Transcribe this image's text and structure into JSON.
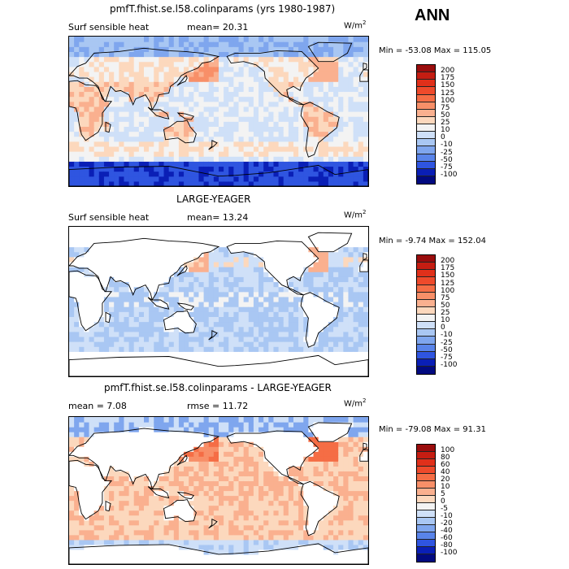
{
  "season": "ANN",
  "panels": [
    {
      "title": "pmfT.fhist.se.l58.colinparams (yrs 1980-1987)",
      "left_label": "Surf sensible heat",
      "middle_label": "mean=  20.31",
      "units": "W/m",
      "units_sup": "2",
      "minmax": "Min = -53.08 Max = 115.05",
      "levels": [
        "200",
        "175",
        "150",
        "125",
        "100",
        "75",
        "50",
        "25",
        "10",
        "0",
        "-10",
        "-25",
        "-50",
        "-75",
        "-100"
      ],
      "colors": [
        "#9a0d0d",
        "#c51d12",
        "#e0301a",
        "#ee4a2b",
        "#f56d45",
        "#f88f68",
        "#fab08f",
        "#fcd8bd",
        "#f3f3f3",
        "#cfe0f8",
        "#a9c7f3",
        "#7fa6ee",
        "#5984ea",
        "#2f55e0",
        "#0a1fb6",
        "#020a80"
      ],
      "map_style": "model"
    },
    {
      "title": "LARGE-YEAGER",
      "left_label": "Surf sensible heat",
      "middle_label": "mean=  13.24",
      "units": "W/m",
      "units_sup": "2",
      "minmax": "Min =  -9.74 Max = 152.04",
      "levels": [
        "200",
        "175",
        "150",
        "125",
        "100",
        "75",
        "50",
        "25",
        "10",
        "0",
        "-10",
        "-25",
        "-50",
        "-75",
        "-100"
      ],
      "colors": [
        "#9a0d0d",
        "#c51d12",
        "#e0301a",
        "#ee4a2b",
        "#f56d45",
        "#f88f68",
        "#fab08f",
        "#fcd8bd",
        "#f3f3f3",
        "#cfe0f8",
        "#a9c7f3",
        "#7fa6ee",
        "#5984ea",
        "#2f55e0",
        "#0a1fb6",
        "#020a80"
      ],
      "map_style": "obs"
    },
    {
      "title": "pmfT.fhist.se.l58.colinparams - LARGE-YEAGER",
      "left_label": "mean =   7.08",
      "middle_label": "rmse =  11.72",
      "units": "W/m",
      "units_sup": "2",
      "minmax": "Min = -79.08 Max =  91.31",
      "levels": [
        "100",
        "80",
        "60",
        "40",
        "20",
        "10",
        "5",
        "0",
        "-5",
        "-10",
        "-20",
        "-40",
        "-60",
        "-80",
        "-100"
      ],
      "colors": [
        "#9a0d0d",
        "#c51d12",
        "#e0301a",
        "#ee4a2b",
        "#f56d45",
        "#f88f68",
        "#fab08f",
        "#fcd8bd",
        "#f3f3f3",
        "#cfe0f8",
        "#a9c7f3",
        "#7fa6ee",
        "#5984ea",
        "#2f55e0",
        "#0a1fb6",
        "#020a80"
      ],
      "map_style": "diff"
    }
  ]
}
